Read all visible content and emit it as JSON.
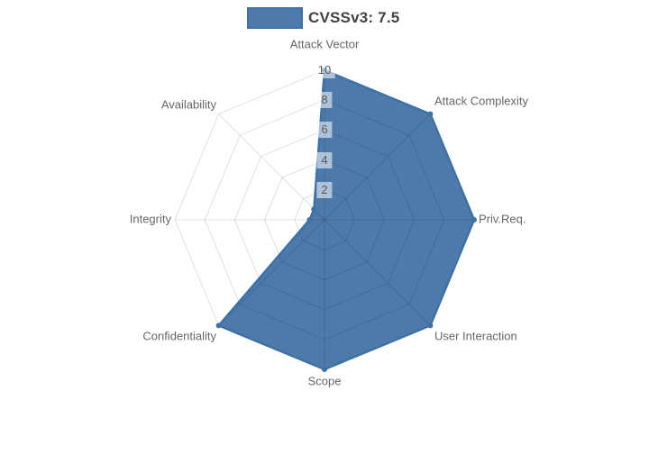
{
  "legend": {
    "label": "CVSSv3: 7.5"
  },
  "chart_data": {
    "type": "radar",
    "title": "",
    "categories": [
      "Attack Vector",
      "Attack Complexity",
      "Priv.Req.",
      "User Interaction",
      "Scope",
      "Confidentiality",
      "Integrity",
      "Availability"
    ],
    "series": [
      {
        "name": "CVSSv3: 7.5",
        "values": [
          10,
          10,
          10,
          10,
          10,
          10,
          1,
          1
        ],
        "fill_color": "#4d7aab",
        "border_color": "#3e72a6"
      }
    ],
    "ticks": [
      2,
      4,
      6,
      8,
      10
    ],
    "tick_labels": [
      "2",
      "4",
      "6",
      "8",
      "10"
    ],
    "rmin": 0,
    "rmax": 10,
    "grid": true,
    "grid_color": "rgba(0,0,0,0.12)",
    "tick_backdrop": "rgba(255,255,255,0.55)",
    "axis_label_color": "#666666",
    "legend_position": "top"
  }
}
